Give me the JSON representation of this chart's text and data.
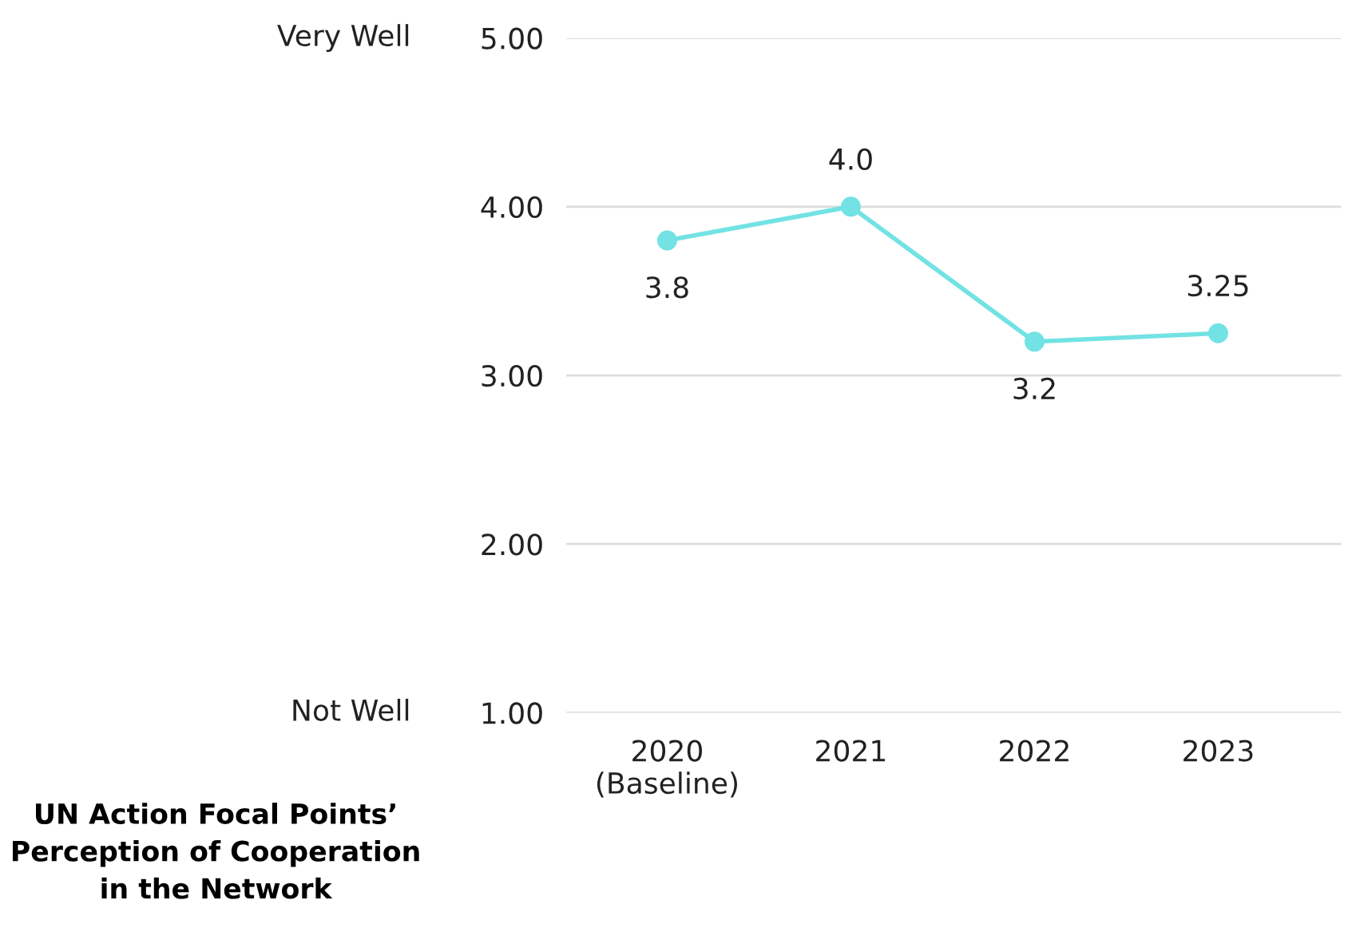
{
  "chart_data": {
    "type": "line",
    "title": "UN Action Focal Points’ Perception of Cooperation in the Network",
    "categories": [
      "2020\n(Baseline)",
      "2021",
      "2022",
      "2023"
    ],
    "series": [
      {
        "color": "#72e2e4",
        "values": [
          3.8,
          4.0,
          3.2,
          3.25
        ],
        "value_labels": [
          "3.8",
          "4.0",
          "3.2",
          "3.25"
        ]
      }
    ],
    "ylim": [
      1,
      5
    ],
    "yticks": [
      {
        "value": 1,
        "label": "1.00"
      },
      {
        "value": 2,
        "label": "2.00"
      },
      {
        "value": 3,
        "label": "3.00"
      },
      {
        "value": 4,
        "label": "4.00"
      },
      {
        "value": 5,
        "label": "5.00"
      }
    ],
    "annotations": [
      "Very Well",
      "Not Well"
    ],
    "grid": "y",
    "marker": "circle",
    "line_style": "solid",
    "legend": false
  }
}
